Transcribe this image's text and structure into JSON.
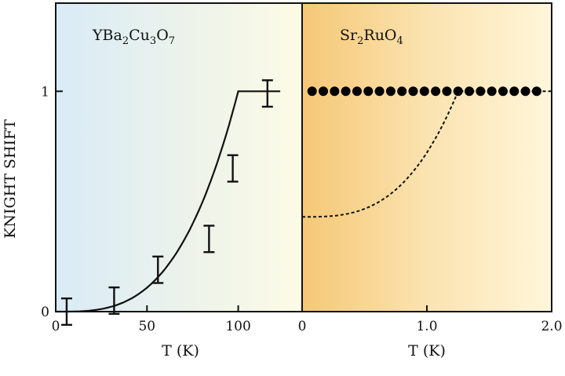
{
  "chart_data": [
    {
      "type": "scatter",
      "panel": "left",
      "title": "YBa2Cu3O7",
      "title_parts": [
        {
          "t": "YBa",
          "sub": false
        },
        {
          "t": "2",
          "sub": true
        },
        {
          "t": "Cu",
          "sub": false
        },
        {
          "t": "3",
          "sub": true
        },
        {
          "t": "O",
          "sub": false
        },
        {
          "t": "7",
          "sub": true
        }
      ],
      "xlabel": "T (K)",
      "ylabel": "KNIGHT SHIFT",
      "xlim": [
        0,
        135
      ],
      "ylim": [
        0,
        1.4
      ],
      "xticks": [
        "0",
        "50",
        "100"
      ],
      "yticks": [
        "0",
        "1"
      ],
      "points": [
        {
          "x": 6,
          "y": 0.0,
          "err": 0.06
        },
        {
          "x": 32,
          "y": 0.05,
          "err": 0.06
        },
        {
          "x": 56,
          "y": 0.19,
          "err": 0.06
        },
        {
          "x": 84,
          "y": 0.33,
          "err": 0.06
        },
        {
          "x": 97,
          "y": 0.65,
          "err": 0.06
        },
        {
          "x": 116,
          "y": 0.99,
          "err": 0.06
        }
      ],
      "curve": {
        "style": "solid",
        "tc": 100,
        "plateau_end": 123
      }
    },
    {
      "type": "scatter",
      "panel": "right",
      "title": "Sr2RuO4",
      "title_parts": [
        {
          "t": "Sr",
          "sub": false
        },
        {
          "t": "2",
          "sub": true
        },
        {
          "t": "RuO",
          "sub": false
        },
        {
          "t": "4",
          "sub": true
        }
      ],
      "xlabel": "T (K)",
      "xlim": [
        0,
        2.0
      ],
      "ylim": [
        0,
        1.4
      ],
      "xticks": [
        "0",
        "1.0",
        "2.0"
      ],
      "points_x": [
        0.08,
        0.17,
        0.26,
        0.35,
        0.44,
        0.53,
        0.62,
        0.71,
        0.8,
        0.89,
        0.98,
        1.07,
        1.16,
        1.25,
        1.34,
        1.43,
        1.52,
        1.61,
        1.7,
        1.79,
        1.88
      ],
      "points_y": 1.0,
      "curve": {
        "style": "dashed",
        "y0": 0.43,
        "tc": 1.25,
        "plateau_end": 2.0
      }
    }
  ]
}
